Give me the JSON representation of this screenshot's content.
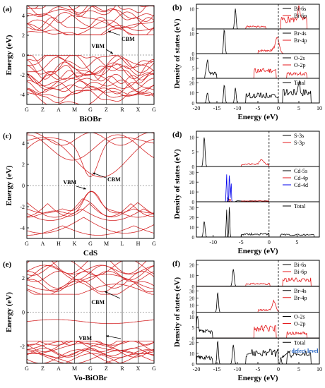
{
  "chart_data": [
    {
      "id": "a",
      "type": "line",
      "label": "(a)",
      "material": "BiOBr",
      "ylabel": "Energy (eV)",
      "ylim": [
        -5,
        5
      ],
      "yticks": [
        -4,
        -2,
        0,
        2,
        4
      ],
      "kpoints": [
        "G",
        "Z",
        "A",
        "M",
        "G",
        "Z",
        "R",
        "X",
        "G"
      ],
      "annotations": [
        "CBM",
        "VBM"
      ],
      "band_color": "#d62728"
    },
    {
      "id": "b",
      "type": "line",
      "label": "(b)",
      "ylabel": "Density of states (eV)",
      "xlabel": "Energy (eV)",
      "xlim": [
        -20,
        10
      ],
      "xticks": [
        -20,
        -15,
        -10,
        -5,
        0,
        5,
        10
      ],
      "panels": [
        {
          "yticks": [
            0,
            10
          ],
          "legend": [
            {
              "name": "Bi-6s",
              "color": "#000000"
            },
            {
              "name": "Bi-6p",
              "color": "#e41a1c"
            }
          ]
        },
        {
          "yticks": [
            0,
            10
          ],
          "legend": [
            {
              "name": "Br-4s",
              "color": "#000000"
            },
            {
              "name": "Br-4p",
              "color": "#e41a1c"
            }
          ]
        },
        {
          "yticks": [
            0,
            5,
            10
          ],
          "legend": [
            {
              "name": "O-2s",
              "color": "#000000"
            },
            {
              "name": "O-2p",
              "color": "#e41a1c"
            }
          ]
        },
        {
          "yticks": [
            0,
            10,
            20
          ],
          "legend": [
            {
              "name": "Total",
              "color": "#000000"
            }
          ]
        }
      ]
    },
    {
      "id": "c",
      "type": "line",
      "label": "(c)",
      "material": "CdS",
      "ylabel": "Energy (eV)",
      "ylim": [
        -5,
        5
      ],
      "yticks": [
        -4,
        -2,
        0,
        2,
        4
      ],
      "kpoints": [
        "G",
        "A",
        "H",
        "K",
        "G",
        "M",
        "L",
        "H",
        "G"
      ],
      "annotations": [
        "CBM",
        "VBM"
      ],
      "band_color": "#d62728"
    },
    {
      "id": "d",
      "type": "line",
      "label": "(d)",
      "ylabel": "Density of states (eV)",
      "xlabel": "Energy (eV)",
      "xlim": [
        -13,
        9
      ],
      "xticks": [
        -10,
        -5,
        0,
        5
      ],
      "panels": [
        {
          "yticks": [
            0,
            5,
            10
          ],
          "legend": [
            {
              "name": "S-3s",
              "color": "#000000"
            },
            {
              "name": "S-3p",
              "color": "#e41a1c"
            }
          ]
        },
        {
          "yticks": [
            0,
            10,
            20,
            30
          ],
          "legend": [
            {
              "name": "Cd-5s",
              "color": "#000000"
            },
            {
              "name": "Cd-4p",
              "color": "#e41a1c"
            },
            {
              "name": "Cd-4d",
              "color": "#0000ee"
            }
          ]
        },
        {
          "yticks": [
            0,
            10,
            20,
            30
          ],
          "legend": [
            {
              "name": "Total",
              "color": "#000000"
            }
          ]
        }
      ]
    },
    {
      "id": "e",
      "type": "line",
      "label": "(e)",
      "material": "Vo-BiOBr",
      "ylabel": "Energy (eV)",
      "ylim": [
        -3,
        3
      ],
      "yticks": [
        -2,
        0,
        2
      ],
      "kpoints": [
        "G",
        "Z",
        "A",
        "M",
        "G",
        "Z",
        "R",
        "X",
        "G"
      ],
      "annotations": [
        "CBM",
        "VBM"
      ],
      "band_color": "#d62728"
    },
    {
      "id": "f",
      "type": "line",
      "label": "(f)",
      "ylabel": "Density of states (eV)",
      "xlabel": "Energy (eV)",
      "xlim": [
        -20,
        10
      ],
      "xticks": [
        -20,
        -15,
        -10,
        -5,
        0,
        5,
        10
      ],
      "panels": [
        {
          "yticks": [
            0,
            10,
            20
          ],
          "legend": [
            {
              "name": "Bi-6s",
              "color": "#000000"
            },
            {
              "name": "Bi-6p",
              "color": "#e41a1c"
            }
          ]
        },
        {
          "yticks": [
            0,
            10,
            20,
            30
          ],
          "legend": [
            {
              "name": "Br-4s",
              "color": "#000000"
            },
            {
              "name": "Br-4p",
              "color": "#e41a1c"
            }
          ]
        },
        {
          "yticks": [
            0,
            5,
            10
          ],
          "legend": [
            {
              "name": "O-2s",
              "color": "#000000"
            },
            {
              "name": "O-2p",
              "color": "#e41a1c"
            }
          ]
        },
        {
          "yticks": [
            0,
            10,
            20
          ],
          "legend": [
            {
              "name": "Total",
              "color": "#000000"
            }
          ]
        }
      ],
      "annotations": [
        "defect level"
      ]
    }
  ]
}
